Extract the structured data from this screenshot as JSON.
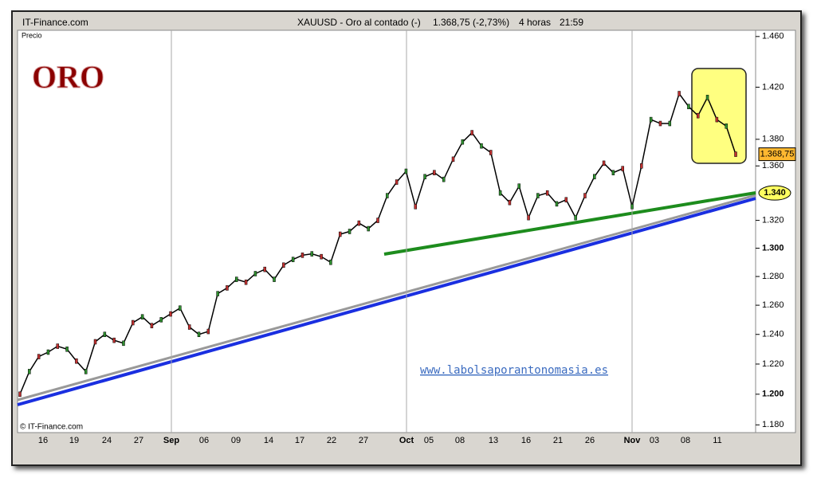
{
  "header": {
    "site": "IT-Finance.com",
    "instrument": "XAUUSD - Oro al contado (-)",
    "quote": "1.368,75 (-2,73%)",
    "timeframe": "4 horas",
    "time": "21:59"
  },
  "footer": "© IT-Finance.com",
  "chart_data": {
    "type": "line",
    "title": "ORO",
    "y_label": "Precio",
    "color": "#000000",
    "log_scale": true,
    "watermark": "www.labolsaporantonomasia.es",
    "x_labels": [
      "16",
      "19",
      "24",
      "27",
      "Sep",
      "06",
      "09",
      "14",
      "17",
      "22",
      "27",
      "Oct",
      "05",
      "08",
      "13",
      "16",
      "21",
      "26",
      "Nov",
      "03",
      "08",
      "11"
    ],
    "values": [
      1.2,
      1.215,
      1.225,
      1.228,
      1.232,
      1.23,
      1.222,
      1.215,
      1.235,
      1.24,
      1.236,
      1.234,
      1.248,
      1.252,
      1.246,
      1.25,
      1.254,
      1.258,
      1.245,
      1.24,
      1.242,
      1.268,
      1.272,
      1.278,
      1.276,
      1.282,
      1.285,
      1.278,
      1.288,
      1.292,
      1.295,
      1.296,
      1.294,
      1.29,
      1.31,
      1.312,
      1.318,
      1.314,
      1.32,
      1.338,
      1.348,
      1.356,
      1.33,
      1.352,
      1.355,
      1.35,
      1.365,
      1.378,
      1.385,
      1.375,
      1.37,
      1.34,
      1.333,
      1.345,
      1.322,
      1.338,
      1.34,
      1.332,
      1.335,
      1.322,
      1.338,
      1.352,
      1.362,
      1.355,
      1.358,
      1.33,
      1.36,
      1.395,
      1.392,
      1.392,
      1.415,
      1.405,
      1.398,
      1.412,
      1.395,
      1.39,
      1.36875
    ],
    "ylim": [
      1.175,
      1.465
    ],
    "yticks": [
      {
        "value": 1.18,
        "label": "1.180"
      },
      {
        "value": 1.2,
        "label": "1.200"
      },
      {
        "value": 1.22,
        "label": "1.220"
      },
      {
        "value": 1.24,
        "label": "1.240"
      },
      {
        "value": 1.26,
        "label": "1.260"
      },
      {
        "value": 1.28,
        "label": "1.280"
      },
      {
        "value": 1.3,
        "label": "1.300"
      },
      {
        "value": 1.32,
        "label": "1.320"
      },
      {
        "value": 1.36,
        "label": "1.360"
      },
      {
        "value": 1.38,
        "label": "1.380"
      },
      {
        "value": 1.42,
        "label": "1.420"
      },
      {
        "value": 1.46,
        "label": "1.460"
      }
    ],
    "marked_level": {
      "value": 1.34,
      "label": "1.340"
    },
    "price_label": {
      "value": 1.36875,
      "label": "1.368,75"
    }
  }
}
